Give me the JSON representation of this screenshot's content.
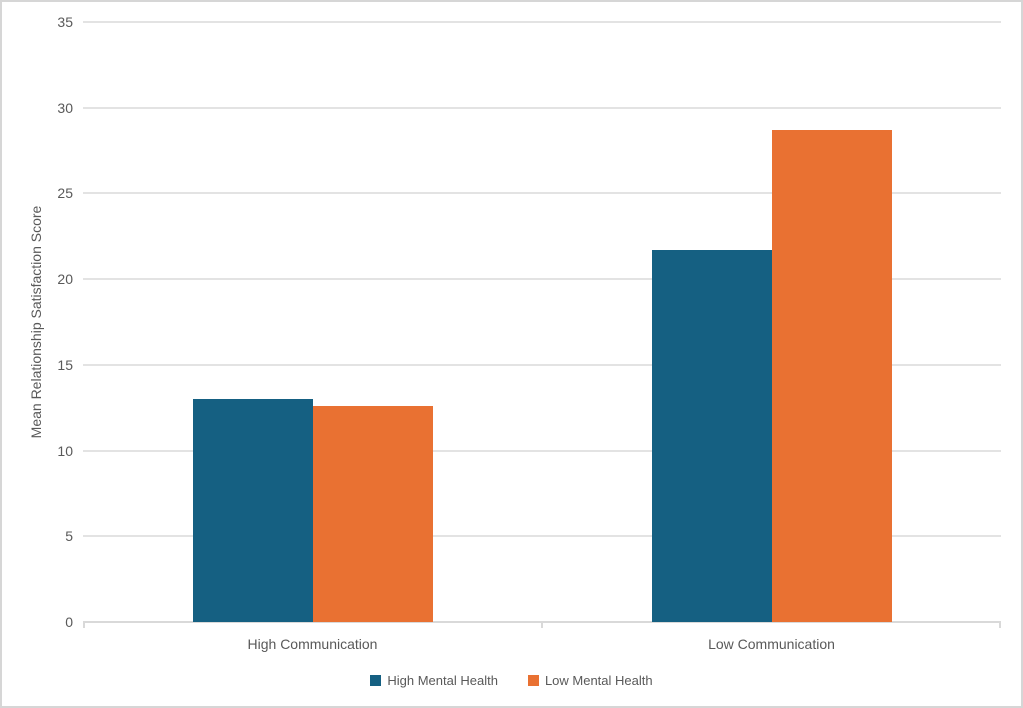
{
  "chart_data": {
    "type": "bar",
    "title": "",
    "categories": [
      "High Communication",
      "Low Communication"
    ],
    "series": [
      {
        "name": "High Mental Health",
        "color": "#156082",
        "values": [
          13.0,
          21.7
        ]
      },
      {
        "name": "Low Mental Health",
        "color": "#E97132",
        "values": [
          12.6,
          28.7
        ]
      }
    ],
    "xlabel": "",
    "ylabel": "Mean Relationship Satisfaction Score",
    "ylim": [
      0,
      35
    ],
    "yticks": [
      0,
      5,
      10,
      15,
      20,
      25,
      30,
      35
    ],
    "grid": true,
    "legend_position": "bottom"
  },
  "colors": {
    "series_high_mental_health": "#156082",
    "series_low_mental_health": "#E97132",
    "gridline": "#E3E3E3",
    "axis_line": "#D9D9D9",
    "text": "#595959",
    "frame_border": "#D6D6D6",
    "background": "#FFFFFF"
  }
}
